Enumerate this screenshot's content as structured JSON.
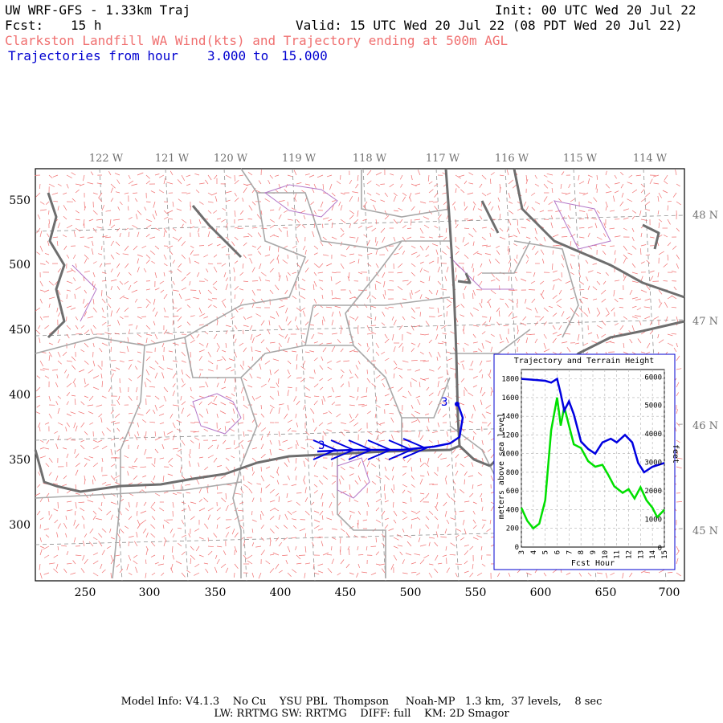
{
  "header": {
    "title": "UW WRF-GFS - 1.33km Traj",
    "init": "Init: 00 UTC Wed 20 Jul 22",
    "fcst_label": "Fcst:",
    "fcst_value": "15 h",
    "valid": "Valid: 15 UTC Wed 20 Jul 22 (08 PDT Wed 20 Jul 22)",
    "subtitle": "Clarkston Landfill WA Wind(kts) and Trajectory ending at 500m AGL",
    "traj_label": "Trajectories from hour",
    "traj_from": "3.000",
    "traj_to_word": "to",
    "traj_to": "15.000"
  },
  "map": {
    "lon_labels": [
      "122 W",
      "121 W",
      "120 W",
      "119 W",
      "118 W",
      "117 W",
      "116 W",
      "115 W",
      "114 W"
    ],
    "lat_labels": [
      "48 N",
      "47 N",
      "46 N",
      "45 N"
    ],
    "x_ticks": [
      "250",
      "300",
      "350",
      "400",
      "450",
      "500",
      "550",
      "600",
      "650",
      "700"
    ],
    "y_ticks": [
      "550",
      "500",
      "450",
      "400",
      "350",
      "300"
    ],
    "traj_start_label": "3",
    "traj_end_label": "3",
    "colors": {
      "coast": "#6e6e6e",
      "county": "#a0a0a0",
      "state": "#b070c0",
      "barb": "#f07070",
      "traj": "#0000e0"
    }
  },
  "inset": {
    "title": "Trajectory and Terrain Height",
    "ylabel_left": "meters above sea level",
    "ylabel_right": "feet",
    "xlabel": "Fcst Hour",
    "left_ticks": [
      "1800",
      "1600",
      "1400",
      "1200",
      "1000",
      "800",
      "600",
      "400",
      "200",
      "0"
    ],
    "right_ticks": [
      "6000",
      "5000",
      "4000",
      "3000",
      "2000",
      "1000",
      "0"
    ],
    "x_ticks": [
      "3",
      "4",
      "5",
      "6",
      "7",
      "8",
      "9",
      "10",
      "11",
      "12",
      "13",
      "14",
      "15"
    ],
    "traj_color": "#0000e0",
    "terrain_color": "#00e000"
  },
  "footer": {
    "line1": "Model Info: V4.1.3    No Cu    YSU PBL  Thompson     Noah-MP   1.3 km,  37 levels,    8 sec",
    "line2": "LW: RRTMG SW: RRTMG    DIFF: full    KM: 2D Smagor"
  }
}
